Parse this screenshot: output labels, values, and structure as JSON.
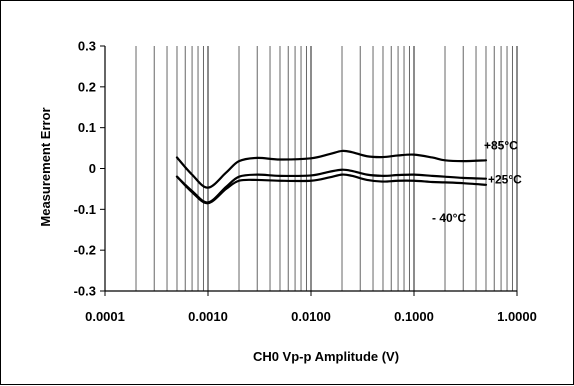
{
  "chart_data": {
    "type": "line",
    "xlabel": "CH0 Vp-p Amplitude (V)",
    "ylabel": "Measurement Error",
    "x_scale": "log",
    "xlim": [
      0.0001,
      1.0
    ],
    "ylim": [
      -0.3,
      0.3
    ],
    "x_ticks": [
      0.0001,
      0.001,
      0.01,
      0.1,
      1.0
    ],
    "x_tick_labels": [
      "0.0001",
      "0.0010",
      "0.0100",
      "0.1000",
      "1.0000"
    ],
    "y_ticks": [
      0.3,
      0.2,
      0.1,
      0,
      -0.1,
      -0.2,
      -0.3
    ],
    "y_tick_labels": [
      "0.3",
      "0.2",
      "0.1",
      "0",
      "-0.1",
      "-0.2",
      "-0.3"
    ],
    "grid": {
      "vertical": true,
      "horizontal": false
    },
    "series": [
      {
        "name": "+85°C",
        "x": [
          0.0005,
          0.0007,
          0.001,
          0.0015,
          0.002,
          0.003,
          0.005,
          0.01,
          0.015,
          0.02,
          0.025,
          0.035,
          0.05,
          0.07,
          0.1,
          0.15,
          0.2,
          0.3,
          0.5
        ],
        "y": [
          0.027,
          -0.015,
          -0.047,
          -0.01,
          0.018,
          0.026,
          0.022,
          0.025,
          0.035,
          0.043,
          0.04,
          0.03,
          0.028,
          0.032,
          0.034,
          0.027,
          0.02,
          0.018,
          0.02
        ]
      },
      {
        "name": "+25°C",
        "x": [
          0.0005,
          0.0007,
          0.001,
          0.0015,
          0.002,
          0.003,
          0.005,
          0.01,
          0.015,
          0.02,
          0.025,
          0.035,
          0.05,
          0.07,
          0.1,
          0.15,
          0.2,
          0.3,
          0.5
        ],
        "y": [
          -0.02,
          -0.055,
          -0.083,
          -0.045,
          -0.02,
          -0.015,
          -0.018,
          -0.017,
          -0.008,
          -0.003,
          -0.006,
          -0.015,
          -0.018,
          -0.016,
          -0.015,
          -0.018,
          -0.02,
          -0.023,
          -0.025
        ]
      },
      {
        "name": "- 40°C",
        "x": [
          0.0005,
          0.0007,
          0.001,
          0.0015,
          0.002,
          0.003,
          0.005,
          0.01,
          0.015,
          0.02,
          0.025,
          0.035,
          0.05,
          0.07,
          0.1,
          0.15,
          0.2,
          0.3,
          0.5
        ],
        "y": [
          -0.02,
          -0.058,
          -0.085,
          -0.05,
          -0.03,
          -0.028,
          -0.03,
          -0.03,
          -0.022,
          -0.015,
          -0.018,
          -0.028,
          -0.032,
          -0.03,
          -0.03,
          -0.033,
          -0.034,
          -0.036,
          -0.04
        ]
      }
    ]
  }
}
